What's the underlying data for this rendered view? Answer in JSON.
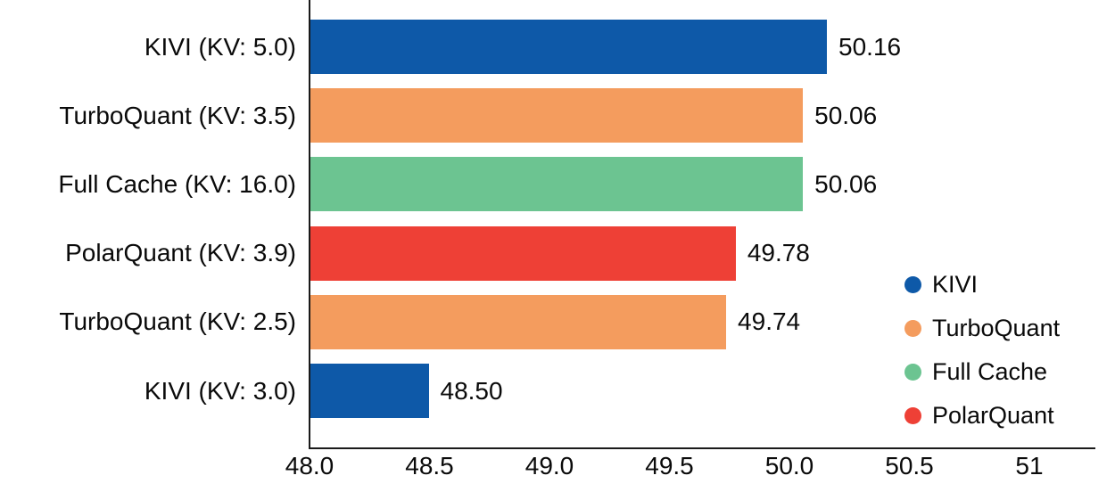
{
  "chart_data": {
    "type": "bar",
    "orientation": "horizontal",
    "title": "",
    "xlabel": "",
    "ylabel": "",
    "grid": false,
    "categories": [
      "KIVI (KV: 5.0)",
      "TurboQuant (KV: 3.5)",
      "Full Cache (KV: 16.0)",
      "PolarQuant (KV: 3.9)",
      "TurboQuant (KV: 2.5)",
      "KIVI (KV: 3.0)"
    ],
    "values": [
      50.16,
      50.06,
      50.06,
      49.78,
      49.74,
      48.5
    ],
    "value_labels": [
      "50.16",
      "50.06",
      "50.06",
      "49.78",
      "49.74",
      "48.50"
    ],
    "bar_series": [
      "KIVI",
      "TurboQuant",
      "Full Cache",
      "PolarQuant",
      "TurboQuant",
      "KIVI"
    ],
    "bar_colors": [
      "#0E59A8",
      "#F49C5E",
      "#6CC491",
      "#EE4036",
      "#F49C5E",
      "#0E59A8"
    ],
    "xlim": [
      48.0,
      51.28
    ],
    "x_ticks": [
      "48.0",
      "48.5",
      "49.0",
      "49.5",
      "50.0",
      "50.5",
      "51"
    ],
    "x_tick_values": [
      48.0,
      48.5,
      49.0,
      49.5,
      50.0,
      50.5,
      51.0
    ],
    "legend": {
      "position": "right",
      "entries": [
        {
          "label": "KIVI",
          "color": "#0E59A8"
        },
        {
          "label": "TurboQuant",
          "color": "#F49C5E"
        },
        {
          "label": "Full Cache",
          "color": "#6CC491"
        },
        {
          "label": "PolarQuant",
          "color": "#EE4036"
        }
      ]
    },
    "colors": {
      "axis": "#1a1a1a",
      "text": "#0a0a0a",
      "background": "#ffffff"
    }
  }
}
